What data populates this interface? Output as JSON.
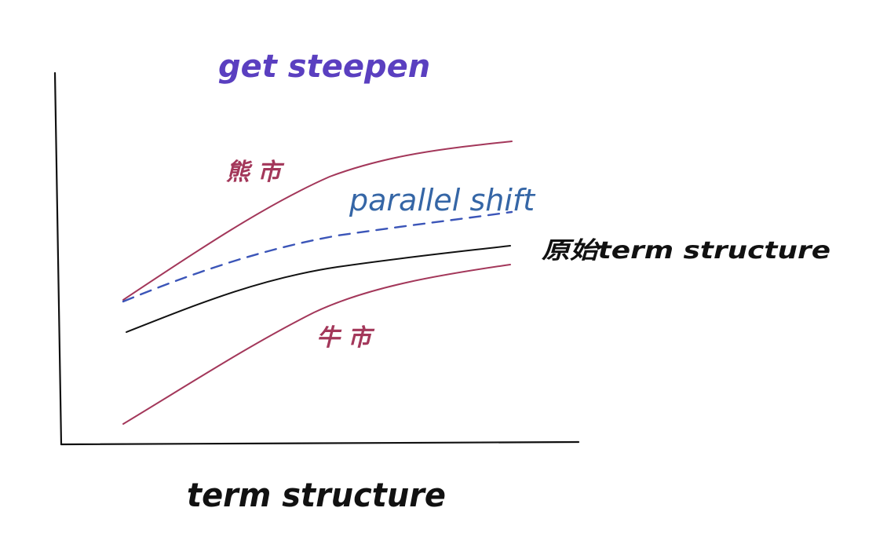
{
  "diagram": {
    "title": "get steepen",
    "x_axis_label": "term structure",
    "curves": [
      {
        "id": "bear-market",
        "label": "熊市",
        "color": "#a3375a",
        "style": "solid"
      },
      {
        "id": "parallel-shift",
        "label": "parallel shift",
        "color": "#3b55b8",
        "style": "dashed"
      },
      {
        "id": "original",
        "label": "原始term structure",
        "color": "#111111",
        "style": "solid"
      },
      {
        "id": "bull-market",
        "label": "牛市",
        "color": "#a3375a",
        "style": "solid"
      }
    ],
    "colors": {
      "title": "#5a3fc0",
      "parallel_label": "#3566a6",
      "market_labels": "#a3375a",
      "axes": "#111111",
      "text": "#111111"
    }
  }
}
